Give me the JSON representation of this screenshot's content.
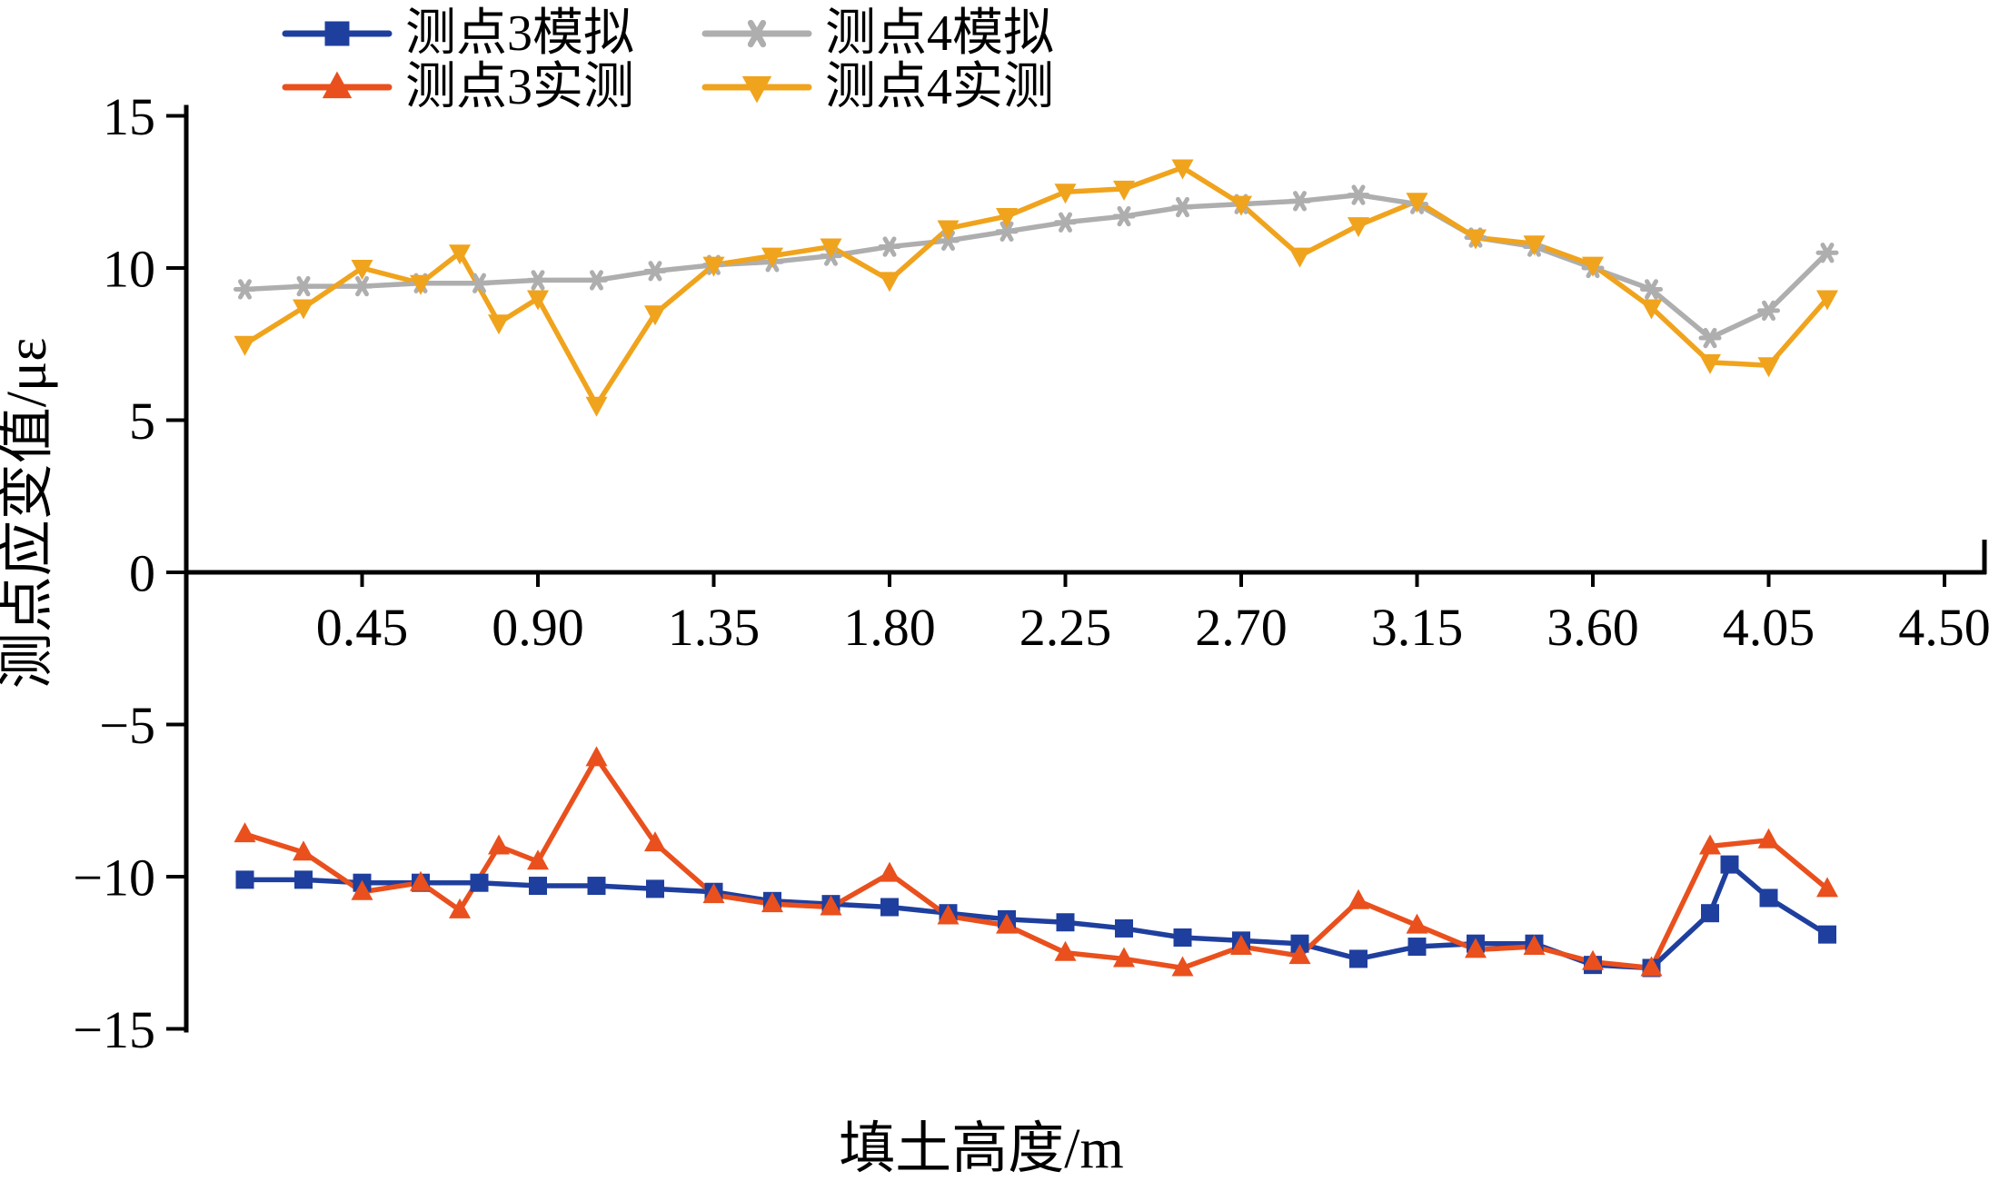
{
  "figure": {
    "background": "#ffffff"
  },
  "chart_data": {
    "type": "line",
    "title": "",
    "xlabel": "填土高度/m",
    "ylabel": "测点应变值/με",
    "xlim": [
      0,
      4.6
    ],
    "ylim": [
      -15,
      15
    ],
    "grid": false,
    "legend_position": "top-center",
    "xtick_labels": [
      "0.45",
      "0.90",
      "1.35",
      "1.80",
      "2.25",
      "2.70",
      "3.15",
      "3.60",
      "4.05",
      "4.50"
    ],
    "xtick_values": [
      0.45,
      0.9,
      1.35,
      1.8,
      2.25,
      2.7,
      3.15,
      3.6,
      4.05,
      4.5
    ],
    "ytick_labels": [
      "15",
      "10",
      "5",
      "0",
      "−5",
      "−10",
      "−15"
    ],
    "ytick_values": [
      15,
      10,
      5,
      0,
      -5,
      -10,
      -15
    ],
    "series": [
      {
        "name": "测点3模拟",
        "color": "#1f3f9e",
        "marker": "square",
        "points": [
          [
            0.15,
            -10.1
          ],
          [
            0.3,
            -10.1
          ],
          [
            0.45,
            -10.2
          ],
          [
            0.6,
            -10.2
          ],
          [
            0.75,
            -10.2
          ],
          [
            0.9,
            -10.3
          ],
          [
            1.05,
            -10.3
          ],
          [
            1.2,
            -10.4
          ],
          [
            1.35,
            -10.5
          ],
          [
            1.5,
            -10.8
          ],
          [
            1.65,
            -10.9
          ],
          [
            1.8,
            -11.0
          ],
          [
            1.95,
            -11.2
          ],
          [
            2.1,
            -11.4
          ],
          [
            2.25,
            -11.5
          ],
          [
            2.4,
            -11.7
          ],
          [
            2.55,
            -12.0
          ],
          [
            2.7,
            -12.1
          ],
          [
            2.85,
            -12.2
          ],
          [
            3.0,
            -12.7
          ],
          [
            3.15,
            -12.3
          ],
          [
            3.3,
            -12.2
          ],
          [
            3.45,
            -12.2
          ],
          [
            3.6,
            -12.9
          ],
          [
            3.75,
            -13.0
          ],
          [
            3.9,
            -11.2
          ],
          [
            3.95,
            -9.6
          ],
          [
            4.05,
            -10.7
          ],
          [
            4.2,
            -11.9
          ]
        ]
      },
      {
        "name": "测点3实测",
        "color": "#e9501d",
        "marker": "triangle-up",
        "points": [
          [
            0.15,
            -8.6
          ],
          [
            0.3,
            -9.2
          ],
          [
            0.45,
            -10.5
          ],
          [
            0.6,
            -10.2
          ],
          [
            0.7,
            -11.1
          ],
          [
            0.8,
            -9.0
          ],
          [
            0.9,
            -9.5
          ],
          [
            1.05,
            -6.1
          ],
          [
            1.2,
            -8.9
          ],
          [
            1.35,
            -10.6
          ],
          [
            1.5,
            -10.9
          ],
          [
            1.65,
            -11.0
          ],
          [
            1.8,
            -9.9
          ],
          [
            1.95,
            -11.3
          ],
          [
            2.1,
            -11.6
          ],
          [
            2.25,
            -12.5
          ],
          [
            2.4,
            -12.7
          ],
          [
            2.55,
            -13.0
          ],
          [
            2.7,
            -12.3
          ],
          [
            2.85,
            -12.6
          ],
          [
            3.0,
            -10.8
          ],
          [
            3.15,
            -11.6
          ],
          [
            3.3,
            -12.4
          ],
          [
            3.45,
            -12.3
          ],
          [
            3.6,
            -12.8
          ],
          [
            3.75,
            -13.0
          ],
          [
            3.9,
            -9.0
          ],
          [
            4.05,
            -8.8
          ],
          [
            4.2,
            -10.4
          ]
        ]
      },
      {
        "name": "测点4模拟",
        "color": "#aeaeae",
        "marker": "star",
        "points": [
          [
            0.15,
            9.3
          ],
          [
            0.3,
            9.4
          ],
          [
            0.45,
            9.4
          ],
          [
            0.6,
            9.5
          ],
          [
            0.75,
            9.5
          ],
          [
            0.9,
            9.6
          ],
          [
            1.05,
            9.6
          ],
          [
            1.2,
            9.9
          ],
          [
            1.35,
            10.1
          ],
          [
            1.5,
            10.2
          ],
          [
            1.65,
            10.4
          ],
          [
            1.8,
            10.7
          ],
          [
            1.95,
            10.9
          ],
          [
            2.1,
            11.2
          ],
          [
            2.25,
            11.5
          ],
          [
            2.4,
            11.7
          ],
          [
            2.55,
            12.0
          ],
          [
            2.7,
            12.1
          ],
          [
            2.85,
            12.2
          ],
          [
            3.0,
            12.4
          ],
          [
            3.15,
            12.1
          ],
          [
            3.3,
            11.0
          ],
          [
            3.45,
            10.7
          ],
          [
            3.6,
            10.0
          ],
          [
            3.75,
            9.3
          ],
          [
            3.9,
            7.7
          ],
          [
            4.05,
            8.6
          ],
          [
            4.2,
            10.5
          ]
        ]
      },
      {
        "name": "测点4实测",
        "color": "#f0a31c",
        "marker": "triangle-down",
        "points": [
          [
            0.15,
            7.5
          ],
          [
            0.3,
            8.7
          ],
          [
            0.45,
            10.0
          ],
          [
            0.6,
            9.5
          ],
          [
            0.7,
            10.5
          ],
          [
            0.8,
            8.2
          ],
          [
            0.9,
            9.0
          ],
          [
            1.05,
            5.5
          ],
          [
            1.2,
            8.5
          ],
          [
            1.35,
            10.1
          ],
          [
            1.5,
            10.4
          ],
          [
            1.65,
            10.7
          ],
          [
            1.8,
            9.6
          ],
          [
            1.95,
            11.3
          ],
          [
            2.1,
            11.7
          ],
          [
            2.25,
            12.5
          ],
          [
            2.4,
            12.6
          ],
          [
            2.55,
            13.3
          ],
          [
            2.7,
            12.1
          ],
          [
            2.85,
            10.4
          ],
          [
            3.0,
            11.4
          ],
          [
            3.15,
            12.2
          ],
          [
            3.3,
            11.0
          ],
          [
            3.45,
            10.8
          ],
          [
            3.6,
            10.1
          ],
          [
            3.75,
            8.7
          ],
          [
            3.9,
            6.9
          ],
          [
            4.05,
            6.8
          ],
          [
            4.2,
            9.0
          ]
        ]
      }
    ]
  }
}
